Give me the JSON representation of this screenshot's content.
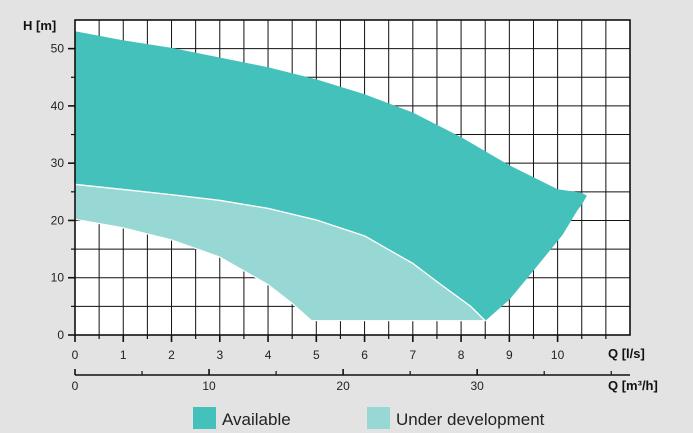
{
  "chart_data": {
    "type": "area",
    "title": "",
    "ylabel": "H [m]",
    "xlabel": "Q [l/s]",
    "xlabel2": "Q [m³/h]",
    "xlim": [
      0,
      11.5
    ],
    "ylim": [
      0,
      55
    ],
    "x_ticks": [
      0,
      1,
      2,
      3,
      4,
      5,
      6,
      7,
      8,
      9,
      10
    ],
    "x_minor_ticks": [
      0.5,
      1.5,
      2.5,
      3.5,
      4.5,
      5.5,
      6.5,
      7.5,
      8.5,
      9.5,
      10.5,
      11
    ],
    "y_ticks": [
      0,
      10,
      20,
      30,
      40,
      50
    ],
    "y_minor_ticks": [
      5,
      15,
      25,
      35,
      45
    ],
    "x2_ticks": [
      0,
      10,
      20,
      30
    ],
    "x2_minor_ticks": [
      5,
      15,
      25,
      35,
      40
    ],
    "grid": true,
    "legend_position": "bottom",
    "colors": {
      "available": "#45c1bb",
      "under_development": "#98d8d4",
      "grid": "#111111",
      "background": "#e3e3e3",
      "plot_bg": "#ffffff"
    },
    "series": [
      {
        "name": "Available",
        "color": "#45c1bb",
        "points": [
          [
            0,
            53
          ],
          [
            1,
            51.4
          ],
          [
            2,
            50.1
          ],
          [
            3,
            48.4
          ],
          [
            4,
            46.7
          ],
          [
            5,
            44.6
          ],
          [
            6,
            42
          ],
          [
            7,
            38.8
          ],
          [
            8,
            34.5
          ],
          [
            9,
            29.6
          ],
          [
            10,
            25.4
          ],
          [
            10.5,
            24.8
          ],
          [
            10.6,
            24.3
          ],
          [
            10.5,
            22.8
          ],
          [
            10.4,
            21.7
          ],
          [
            10.1,
            17.5
          ],
          [
            9.5,
            11.3
          ],
          [
            9,
            6.2
          ],
          [
            8.5,
            2.5
          ],
          [
            8.2,
            5
          ],
          [
            7.5,
            9.3
          ],
          [
            7,
            12.5
          ],
          [
            6,
            17.3
          ],
          [
            5,
            20.1
          ],
          [
            4,
            22.1
          ],
          [
            3,
            23.5
          ],
          [
            2,
            24.5
          ],
          [
            1,
            25.4
          ],
          [
            0,
            26.3
          ]
        ]
      },
      {
        "name": "Under development",
        "color": "#98d8d4",
        "points": [
          [
            0,
            26.3
          ],
          [
            1,
            25.4
          ],
          [
            2,
            24.5
          ],
          [
            3,
            23.5
          ],
          [
            4,
            22.1
          ],
          [
            5,
            20.1
          ],
          [
            6,
            17.3
          ],
          [
            7,
            12.5
          ],
          [
            7.5,
            9.3
          ],
          [
            8.2,
            5
          ],
          [
            8.5,
            2.5
          ],
          [
            4.9,
            2.5
          ],
          [
            4.5,
            5.5
          ],
          [
            4,
            8.8
          ],
          [
            3,
            13.6
          ],
          [
            2,
            16.6
          ],
          [
            1,
            18.7
          ],
          [
            0,
            20.2
          ]
        ]
      }
    ]
  }
}
